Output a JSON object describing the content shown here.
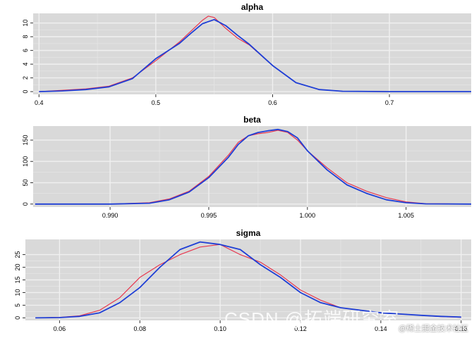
{
  "colors": {
    "panel_bg": "#d9d9d9",
    "grid_major": "#f0f0f0",
    "grid_minor": "#e5e5e5",
    "series1": "#e8384f",
    "series2": "#1f3fd6"
  },
  "watermark": {
    "main": "CSDN @拓端研究室",
    "sub": "@稀土掘金技术社区"
  },
  "chart_data": [
    {
      "type": "line",
      "title": "alpha",
      "xlim": [
        0.395,
        0.77
      ],
      "ylim": [
        -0.4,
        11.4
      ],
      "xticks": [
        0.4,
        0.5,
        0.6,
        0.7
      ],
      "xtick_labels": [
        "0.4",
        "0.5",
        "0.6",
        "0.7"
      ],
      "yticks": [
        0,
        2,
        4,
        6,
        8,
        10
      ],
      "ytick_labels": [
        "0",
        "2",
        "4",
        "6",
        "8",
        "10"
      ],
      "series": [
        {
          "color": "#e8384f",
          "x": [
            0.4,
            0.42,
            0.44,
            0.46,
            0.48,
            0.5,
            0.52,
            0.53,
            0.54,
            0.545,
            0.55,
            0.56,
            0.57,
            0.58,
            0.6,
            0.62,
            0.64,
            0.66,
            0.7,
            0.77
          ],
          "y": [
            0.0,
            0.2,
            0.4,
            0.8,
            2.0,
            4.5,
            7.2,
            8.8,
            10.4,
            11.0,
            10.8,
            9.2,
            7.8,
            6.8,
            3.8,
            1.3,
            0.3,
            0.05,
            0.0,
            0.0
          ]
        },
        {
          "color": "#1f3fd6",
          "x": [
            0.4,
            0.42,
            0.44,
            0.46,
            0.48,
            0.5,
            0.52,
            0.53,
            0.54,
            0.55,
            0.56,
            0.57,
            0.58,
            0.6,
            0.62,
            0.64,
            0.66,
            0.7,
            0.77
          ],
          "y": [
            0.0,
            0.1,
            0.3,
            0.7,
            1.9,
            4.8,
            7.0,
            8.5,
            9.9,
            10.5,
            9.6,
            8.2,
            6.9,
            3.8,
            1.3,
            0.3,
            0.05,
            0.0,
            0.0
          ]
        }
      ]
    },
    {
      "type": "line",
      "title": "beta",
      "xlim": [
        0.9861,
        1.0083
      ],
      "ylim": [
        -7,
        183
      ],
      "xticks": [
        0.99,
        0.995,
        1.0,
        1.005
      ],
      "xtick_labels": [
        "0.990",
        "0.995",
        "1.000",
        "1.005"
      ],
      "yticks": [
        0,
        50,
        100,
        150
      ],
      "ytick_labels": [
        "0",
        "50",
        "100",
        "150"
      ],
      "series": [
        {
          "color": "#e8384f",
          "x": [
            0.9862,
            0.99,
            0.992,
            0.993,
            0.994,
            0.995,
            0.996,
            0.9965,
            0.997,
            0.9975,
            0.998,
            0.9985,
            0.999,
            0.9995,
            1.0,
            1.001,
            1.002,
            1.003,
            1.004,
            1.005,
            1.006,
            1.0083
          ],
          "y": [
            0,
            0,
            3,
            12,
            30,
            65,
            115,
            145,
            160,
            165,
            168,
            173,
            168,
            150,
            125,
            85,
            50,
            30,
            15,
            5,
            1,
            0
          ]
        },
        {
          "color": "#1f3fd6",
          "x": [
            0.9862,
            0.99,
            0.992,
            0.993,
            0.994,
            0.995,
            0.996,
            0.9965,
            0.997,
            0.9975,
            0.998,
            0.9985,
            0.999,
            0.9995,
            1.0,
            1.001,
            1.002,
            1.003,
            1.004,
            1.005,
            1.006,
            1.0083
          ],
          "y": [
            0,
            0,
            2,
            10,
            28,
            62,
            110,
            140,
            160,
            168,
            172,
            175,
            170,
            155,
            125,
            80,
            45,
            25,
            10,
            3,
            0.5,
            0
          ]
        }
      ]
    },
    {
      "type": "line",
      "title": "sigma",
      "xlim": [
        0.0515,
        0.1625
      ],
      "ylim": [
        -1,
        31
      ],
      "xticks": [
        0.06,
        0.08,
        0.1,
        0.12,
        0.14,
        0.16
      ],
      "xtick_labels": [
        "0.06",
        "0.08",
        "0.10",
        "0.12",
        "0.14",
        "0.16"
      ],
      "yticks": [
        0,
        5,
        10,
        15,
        20,
        25
      ],
      "ytick_labels": [
        "0",
        "5",
        "10",
        "15",
        "20",
        "25"
      ],
      "series": [
        {
          "color": "#e8384f",
          "x": [
            0.054,
            0.06,
            0.065,
            0.07,
            0.075,
            0.08,
            0.085,
            0.09,
            0.095,
            0.1,
            0.105,
            0.11,
            0.115,
            0.12,
            0.125,
            0.13,
            0.135,
            0.14,
            0.145,
            0.15,
            0.155,
            0.16
          ],
          "y": [
            0,
            0.2,
            0.8,
            3,
            8,
            16,
            21,
            25,
            28,
            29,
            25,
            22,
            17,
            11,
            7,
            4,
            3,
            2,
            1.5,
            1,
            0.5,
            0.2
          ]
        },
        {
          "color": "#1f3fd6",
          "x": [
            0.054,
            0.06,
            0.065,
            0.07,
            0.075,
            0.08,
            0.085,
            0.09,
            0.095,
            0.1,
            0.105,
            0.11,
            0.115,
            0.12,
            0.125,
            0.13,
            0.135,
            0.14,
            0.145,
            0.15,
            0.155,
            0.16
          ],
          "y": [
            0,
            0.1,
            0.6,
            2,
            6,
            12,
            20,
            27,
            30,
            29,
            27,
            21,
            16,
            10,
            6,
            4,
            3,
            2,
            1.5,
            1,
            0.6,
            0.3
          ]
        }
      ]
    }
  ]
}
